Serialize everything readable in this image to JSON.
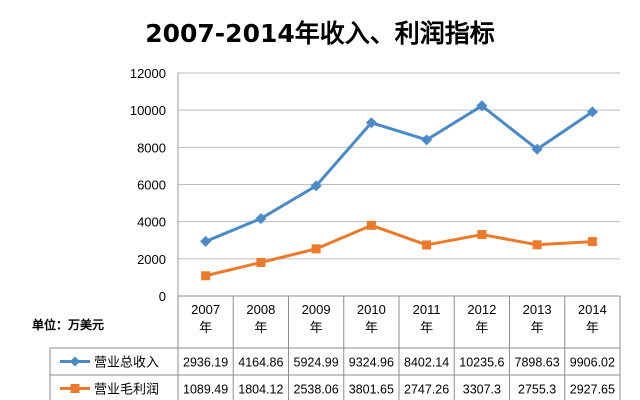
{
  "chart_data": {
    "type": "line",
    "title": "2007-2014年收入、利润指标",
    "unit_label": "单位：万美元",
    "categories": [
      "2007年",
      "2008年",
      "2009年",
      "2010年",
      "2011年",
      "2012年",
      "2013年",
      "2014年"
    ],
    "ylim": [
      0,
      12000
    ],
    "yticks": [
      "0",
      "2000",
      "4000",
      "6000",
      "8000",
      "10000",
      "12000"
    ],
    "grid": true,
    "legend_placement": "bottom-data-table",
    "series": [
      {
        "name": "营业总收入",
        "color": "#4a8ac8",
        "marker": "diamond",
        "values": [
          2936.19,
          4164.86,
          5924.99,
          9324.96,
          8402.14,
          10235.6,
          7898.63,
          9906.02
        ],
        "labels": [
          "2936.19",
          "4164.86",
          "5924.99",
          "9324.96",
          "8402.14",
          "10235.6",
          "7898.63",
          "9906.02"
        ]
      },
      {
        "name": "营业毛利润",
        "color": "#ec7a2a",
        "marker": "square",
        "values": [
          1089.49,
          1804.12,
          2538.06,
          3801.65,
          2747.26,
          3307.3,
          2755.3,
          2927.65
        ],
        "labels": [
          "1089.49",
          "1804.12",
          "2538.06",
          "3801.65",
          "2747.26",
          "3307.3",
          "2755.3",
          "2927.65"
        ]
      }
    ]
  }
}
